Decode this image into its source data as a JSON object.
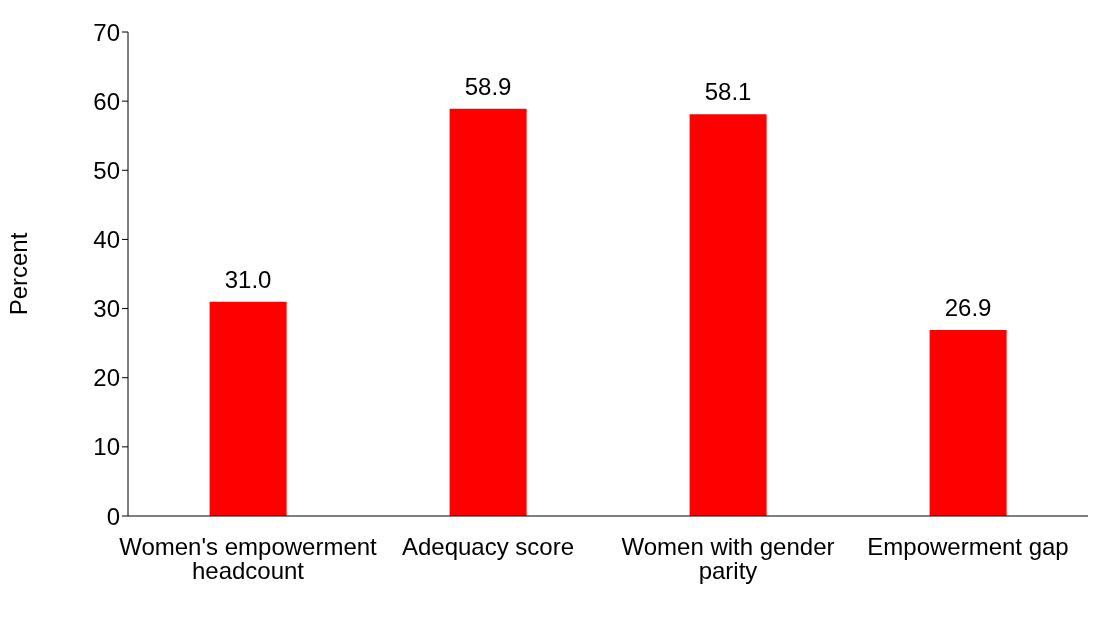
{
  "chart_data": {
    "type": "bar",
    "ylabel": "Percent",
    "categories": [
      "Women's empowerment headcount",
      "Adequacy score",
      "Women with gender parity",
      "Empowerment gap"
    ],
    "values": [
      31.0,
      58.9,
      58.1,
      26.9
    ],
    "value_labels": [
      "31.0",
      "58.9",
      "58.1",
      "26.9"
    ],
    "color": "#ff0000",
    "ylim": [
      0,
      70
    ],
    "yticks": [
      0,
      10,
      20,
      30,
      40,
      50,
      60,
      70
    ],
    "grid": false,
    "legend": false
  }
}
